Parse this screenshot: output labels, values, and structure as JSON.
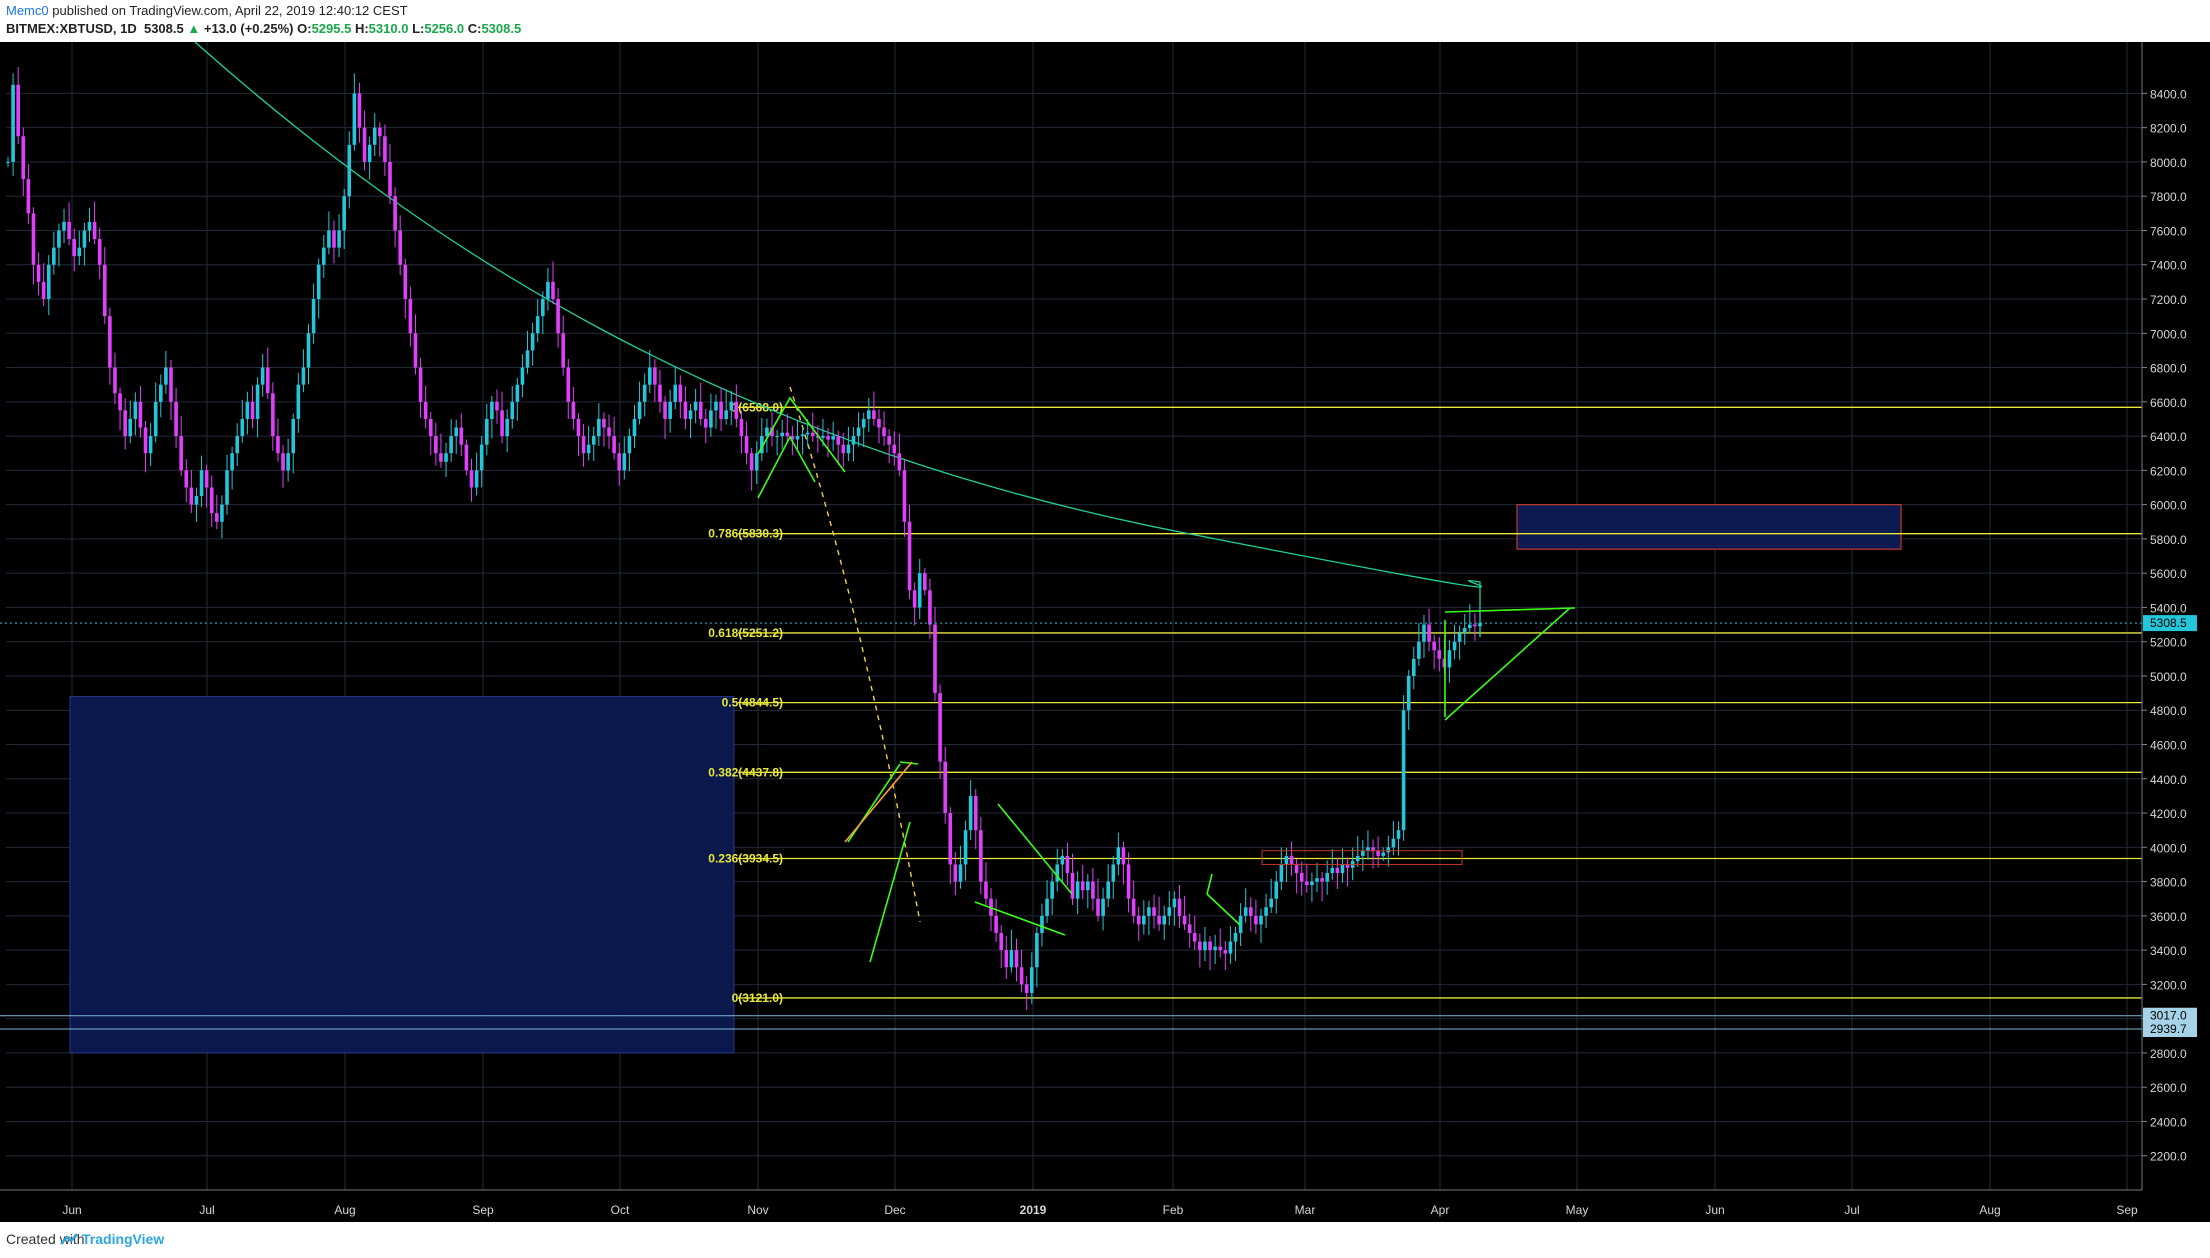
{
  "header": {
    "publisher": "Memc0",
    "published_text": "published on TradingView.com, April 22, 2019 12:40:12 CEST",
    "symbol": "BITMEX:XBTUSD, 1D",
    "last": "5308.5",
    "change": "+13.0 (+0.25%)",
    "o_label": "O:",
    "o": "5295.5",
    "h_label": "H:",
    "h": "5310.0",
    "l_label": "L:",
    "l": "5256.0",
    "c_label": "C:",
    "c": "5308.5"
  },
  "footer": {
    "created": "Created with",
    "brand": "TradingView"
  },
  "colors": {
    "up": "#26c6da",
    "down": "#e040fb",
    "fib": "#e8e83a",
    "trend": "#1fd39a",
    "pattern": "#39ff14",
    "zone_fill": "#0c1a52",
    "zone_stroke": "#c0392b"
  },
  "chart_data": {
    "type": "candlestick",
    "ylim": [
      2000,
      8700
    ],
    "y_ticks": [
      "8400.0",
      "8200.0",
      "8000.0",
      "7800.0",
      "7600.0",
      "7400.0",
      "7200.0",
      "7000.0",
      "6800.0",
      "6600.0",
      "6400.0",
      "6200.0",
      "6000.0",
      "5800.0",
      "5600.0",
      "5400.0",
      "5200.0",
      "5000.0",
      "4800.0",
      "4600.0",
      "4400.0",
      "4200.0",
      "4000.0",
      "3800.0",
      "3600.0",
      "3400.0",
      "3200.0",
      "3000.0",
      "2800.0",
      "2600.0",
      "2400.0",
      "2200.0"
    ],
    "x_ticks": [
      "Jun",
      "Jul",
      "Aug",
      "Sep",
      "Oct",
      "Nov",
      "Dec",
      "2019",
      "Feb",
      "Mar",
      "Apr",
      "May",
      "Jun",
      "Jul",
      "Aug",
      "Sep"
    ],
    "fib_levels": [
      {
        "label": "1(6568.0)",
        "value": 6568.0
      },
      {
        "label": "0.786(5830.3)",
        "value": 5830.3
      },
      {
        "label": "0.618(5251.2)",
        "value": 5251.2
      },
      {
        "label": "0.5(4844.5)",
        "value": 4844.5
      },
      {
        "label": "0.382(4437.8)",
        "value": 4437.8
      },
      {
        "label": "0.236(3934.5)",
        "value": 3934.5
      },
      {
        "label": "0(3121.0)",
        "value": 3121.0
      }
    ],
    "price_badges": [
      {
        "label": "5308.5",
        "value": 5308.5
      },
      {
        "label": "3017.0",
        "value": 3017.0
      },
      {
        "label": "2939.7",
        "value": 2939.7
      }
    ],
    "closes": [
      8000,
      8450,
      8150,
      7900,
      7700,
      7400,
      7300,
      7200,
      7400,
      7500,
      7600,
      7650,
      7550,
      7450,
      7500,
      7600,
      7650,
      7550,
      7400,
      7100,
      6800,
      6650,
      6550,
      6400,
      6500,
      6600,
      6450,
      6300,
      6400,
      6600,
      6700,
      6800,
      6600,
      6400,
      6200,
      6100,
      6000,
      6050,
      6200,
      6100,
      5950,
      5900,
      6000,
      6200,
      6300,
      6400,
      6500,
      6600,
      6500,
      6700,
      6800,
      6650,
      6400,
      6300,
      6200,
      6300,
      6500,
      6700,
      6800,
      7000,
      7200,
      7400,
      7500,
      7600,
      7500,
      7600,
      7800,
      8100,
      8400,
      8200,
      8000,
      8100,
      8200,
      8150,
      8000,
      7800,
      7600,
      7400,
      7200,
      7000,
      6800,
      6600,
      6500,
      6400,
      6300,
      6250,
      6300,
      6400,
      6450,
      6350,
      6200,
      6100,
      6200,
      6350,
      6500,
      6600,
      6550,
      6400,
      6500,
      6600,
      6700,
      6800,
      6900,
      7000,
      7100,
      7200,
      7300,
      7200,
      7000,
      6800,
      6600,
      6500,
      6400,
      6300,
      6350,
      6400,
      6500,
      6450,
      6400,
      6300,
      6200,
      6300,
      6400,
      6500,
      6600,
      6700,
      6800,
      6700,
      6600,
      6500,
      6600,
      6700,
      6600,
      6500,
      6550,
      6600,
      6500,
      6450,
      6550,
      6600,
      6500,
      6550,
      6600,
      6500,
      6400,
      6300,
      6200,
      6300,
      6400,
      6450,
      6400,
      6400,
      6420,
      6400,
      6380,
      6400,
      6410,
      6420,
      6400,
      6390,
      6400,
      6380,
      6400,
      6350,
      6300,
      6350,
      6400,
      6450,
      6500,
      6550,
      6500,
      6450,
      6400,
      6350,
      6300,
      6200,
      5900,
      5500,
      5400,
      5600,
      5500,
      5300,
      4900,
      4500,
      4200,
      3900,
      3800,
      3900,
      4100,
      4300,
      4100,
      3800,
      3700,
      3600,
      3500,
      3400,
      3300,
      3400,
      3300,
      3200,
      3150,
      3300,
      3500,
      3600,
      3700,
      3800,
      3900,
      3950,
      3850,
      3700,
      3800,
      3750,
      3800,
      3700,
      3600,
      3700,
      3800,
      3900,
      4000,
      3900,
      3700,
      3600,
      3550,
      3600,
      3650,
      3600,
      3550,
      3600,
      3650,
      3700,
      3600,
      3550,
      3500,
      3450,
      3400,
      3450,
      3400,
      3420,
      3400,
      3380,
      3450,
      3500,
      3600,
      3650,
      3600,
      3550,
      3600,
      3650,
      3700,
      3800,
      3900,
      3950,
      3900,
      3850,
      3800,
      3780,
      3800,
      3820,
      3800,
      3850,
      3880,
      3850,
      3900,
      3880,
      3920,
      3950,
      3980,
      4000,
      3980,
      3950,
      3970,
      4000,
      4050,
      4100,
      4800,
      5000,
      5100,
      5200,
      5300,
      5200,
      5150,
      5100,
      5050,
      5150,
      5200,
      5250,
      5280,
      5300,
      5290,
      5308.5
    ]
  }
}
